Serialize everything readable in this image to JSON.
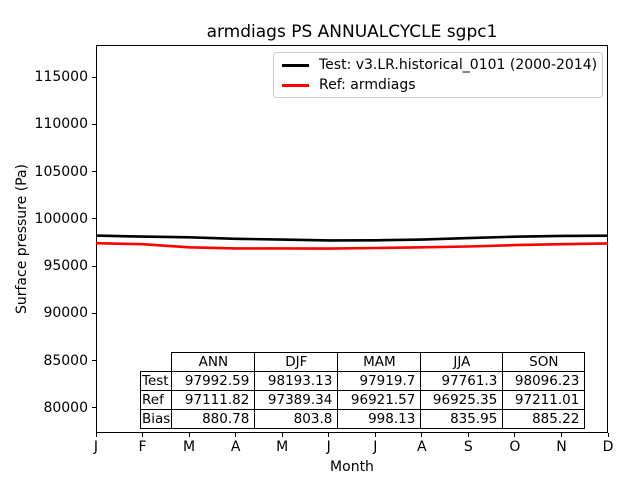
{
  "title": "armdiags PS ANNUALCYCLE sgpc1",
  "colors": {
    "test_line": "#000000",
    "ref_line": "#ff0000",
    "legend_border": "#cccccc",
    "axis": "#000000"
  },
  "legend": {
    "items": [
      {
        "label": "Test: v3.LR.historical_0101 (2000-2014)",
        "color": "#000000"
      },
      {
        "label": "Ref: armdiags",
        "color": "#ff0000"
      }
    ]
  },
  "chart_data": {
    "type": "line",
    "title": "armdiags PS ANNUALCYCLE sgpc1",
    "xlabel": "Month",
    "ylabel": "Surface pressure (Pa)",
    "x_ticklabels": [
      "J",
      "F",
      "M",
      "A",
      "M",
      "J",
      "J",
      "A",
      "S",
      "O",
      "N",
      "D"
    ],
    "yticks": [
      80000,
      85000,
      90000,
      95000,
      100000,
      105000,
      110000,
      115000
    ],
    "ylim": [
      77350,
      118400
    ],
    "xlim": [
      0,
      11
    ],
    "grid": false,
    "legend_position": "upper right",
    "series": [
      {
        "name": "Test: v3.LR.historical_0101 (2000-2014)",
        "color": "#000000",
        "values": [
          98230,
          98130,
          98050,
          97900,
          97810,
          97730,
          97740,
          97815,
          97965,
          98120,
          98205,
          98220
        ]
      },
      {
        "name": "Ref: armdiags",
        "color": "#ff0000",
        "values": [
          97430,
          97330,
          97000,
          96880,
          96885,
          96860,
          96920,
          96995,
          97080,
          97230,
          97323,
          97410
        ]
      }
    ]
  },
  "stats_table": {
    "columns": [
      "ANN",
      "DJF",
      "MAM",
      "JJA",
      "SON"
    ],
    "rows": [
      {
        "label": "Test",
        "values": [
          "97992.59",
          "98193.13",
          "97919.7",
          "97761.3",
          "98096.23"
        ]
      },
      {
        "label": "Ref",
        "values": [
          "97111.82",
          "97389.34",
          "96921.57",
          "96925.35",
          "97211.01"
        ]
      },
      {
        "label": "Bias",
        "values": [
          "880.78",
          "803.8",
          "998.13",
          "835.95",
          "885.22"
        ]
      }
    ]
  }
}
